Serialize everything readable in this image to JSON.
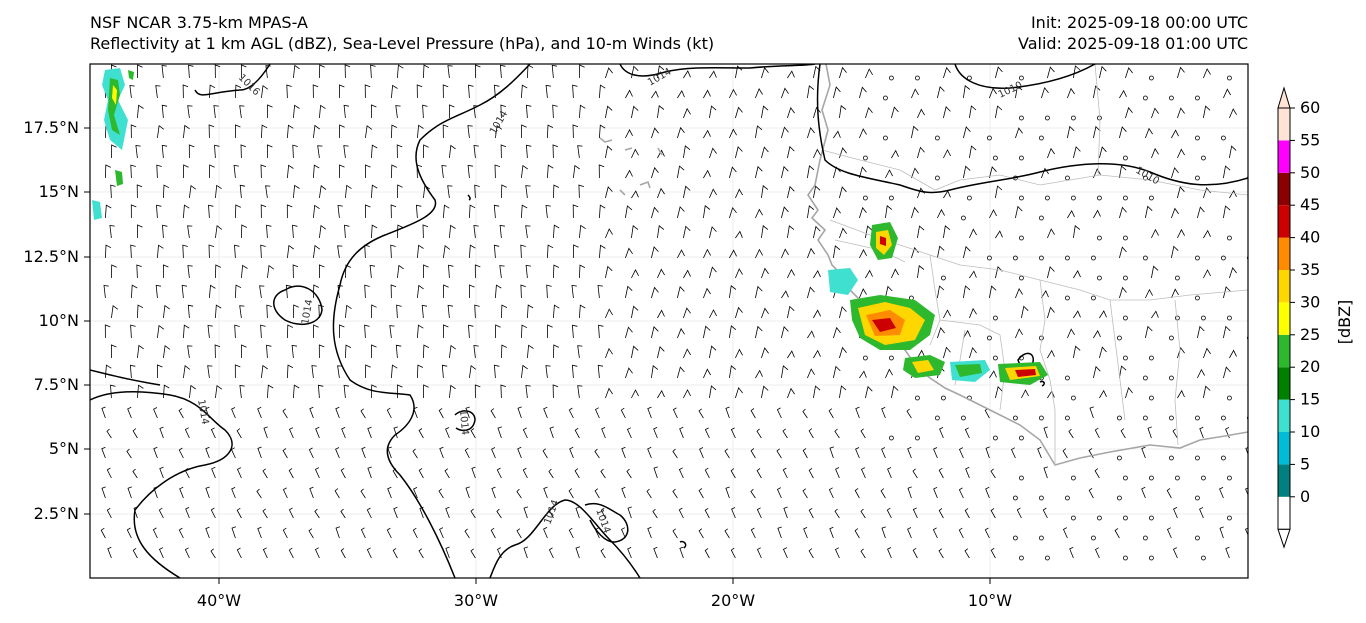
{
  "header": {
    "model": "NSF NCAR 3.75-km MPAS-A",
    "fields": "Reflectivity at 1 km AGL (dBZ), Sea-Level Pressure (hPa), and 10-m Winds (kt)",
    "init": "Init: 2025-09-18 00:00 UTC",
    "valid": "Valid: 2025-09-18 01:00 UTC"
  },
  "map": {
    "lon_range": [
      -45.5,
      0.5
    ],
    "lat_range": [
      0,
      20
    ],
    "lon_ticks": [
      "40°W",
      "30°W",
      "20°W",
      "10°W"
    ],
    "lat_ticks": [
      "2.5°N",
      "5°N",
      "7.5°N",
      "10°N",
      "12.5°N",
      "15°N",
      "17.5°N"
    ],
    "contour_labels": [
      "1016",
      "1014",
      "1014",
      "1014",
      "1014",
      "1014",
      "1014",
      "1014",
      "1010",
      "1010"
    ],
    "colors": {
      "coastline": "#a6a6a6",
      "contour": "#000000",
      "barb": "#000000"
    }
  },
  "colorbar": {
    "label": "[dBZ]",
    "ticks": [
      "0",
      "5",
      "10",
      "15",
      "20",
      "25",
      "30",
      "35",
      "40",
      "45",
      "50",
      "55",
      "60"
    ],
    "colors": [
      "#ffffff",
      "#008080",
      "#00bcd4",
      "#40e0d0",
      "#008000",
      "#2eb82e",
      "#ffff00",
      "#ffd700",
      "#ff8c00",
      "#cc0000",
      "#8b0000",
      "#ff00ff",
      "#ffe4d6"
    ]
  }
}
